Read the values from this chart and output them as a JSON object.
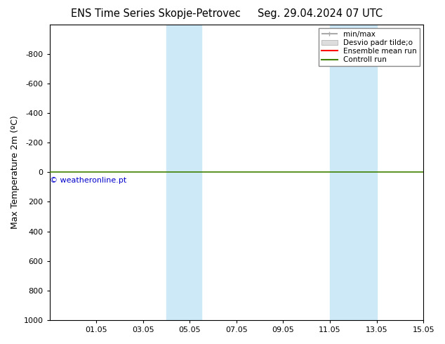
{
  "title_left": "ENS Time Series Skopje-Petrovec",
  "title_right": "Seg. 29.04.2024 07 UTC",
  "ylabel": "Max Temperature 2m (ºC)",
  "ylim_top": -1000,
  "ylim_bottom": 1000,
  "yticks": [
    -800,
    -600,
    -400,
    -200,
    0,
    200,
    400,
    600,
    800,
    1000
  ],
  "xlim_left": 0,
  "xlim_right": 16,
  "xtick_labels": [
    "01.05",
    "03.05",
    "05.05",
    "07.05",
    "09.05",
    "11.05",
    "13.05",
    "15.05"
  ],
  "xtick_positions": [
    2,
    4,
    6,
    8,
    10,
    12,
    14,
    16
  ],
  "shaded_regions": [
    {
      "start": 5.0,
      "end": 6.5
    },
    {
      "start": 12.0,
      "end": 14.0
    }
  ],
  "shade_color": "#cde8f7",
  "control_run_y": 0,
  "control_run_color": "#408000",
  "watermark_text": "© weatheronline.pt",
  "watermark_color": "#0000cc",
  "legend_entries": [
    {
      "label": "min/max",
      "color": "#aaaaaa",
      "lw": 1.5
    },
    {
      "label": "Desvio padr tilde;o",
      "color": "#dddddd",
      "lw": 6
    },
    {
      "label": "Ensemble mean run",
      "color": "#ff0000",
      "lw": 1.5
    },
    {
      "label": "Controll run",
      "color": "#408000",
      "lw": 1.5
    }
  ],
  "background_color": "#ffffff",
  "title_fontsize": 10.5,
  "axis_label_fontsize": 9,
  "tick_fontsize": 8,
  "legend_fontsize": 7.5
}
